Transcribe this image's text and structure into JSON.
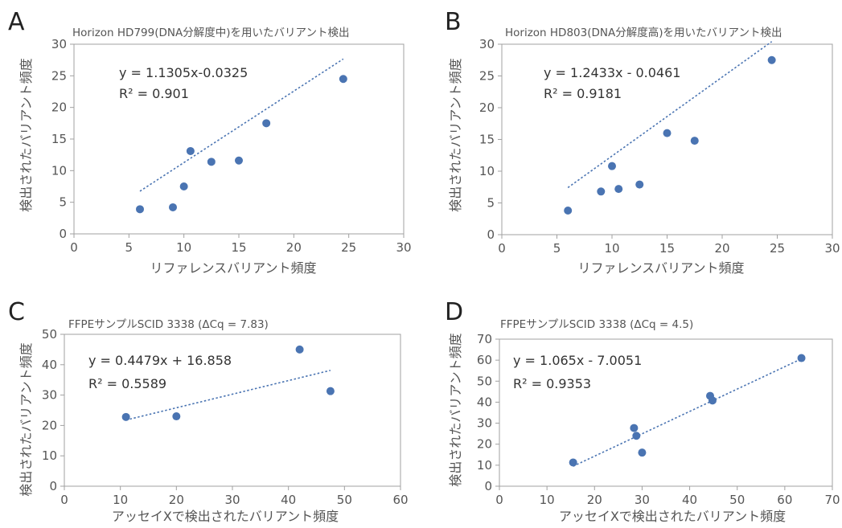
{
  "chart_data": [
    {
      "type": "scatter",
      "panel_letter": "A",
      "title": "Horizon HD799(DNA分解度中)を用いたバリアント検出",
      "xlabel": "リファレンスバリアント頻度",
      "ylabel": "検出されたバリアント頻度",
      "xlim": [
        0,
        30
      ],
      "ylim": [
        0,
        30
      ],
      "xticks": [
        "0",
        "5",
        "10",
        "15",
        "20",
        "25",
        "30"
      ],
      "yticks": [
        "0",
        "5",
        "10",
        "15",
        "20",
        "25",
        "30"
      ],
      "grid": false,
      "x": [
        6.0,
        9.0,
        10.0,
        10.6,
        12.5,
        15.0,
        17.5,
        24.5
      ],
      "y": [
        3.9,
        4.2,
        7.5,
        13.1,
        11.4,
        11.6,
        17.5,
        24.5
      ],
      "trendline": {
        "slope": 1.1305,
        "intercept": -0.0325,
        "x_range": [
          6.0,
          24.5
        ]
      },
      "equation": "y = 1.1305x-0.0325",
      "r2": "R² = 0.901",
      "color": "#4a74b2"
    },
    {
      "type": "scatter",
      "panel_letter": "B",
      "title": "Horizon HD803(DNA分解度高)を用いたバリアント検出",
      "xlabel": "リファレンスバリアント頻度",
      "ylabel": "検出されたバリアント頻度",
      "xlim": [
        0,
        30
      ],
      "ylim": [
        0,
        30
      ],
      "xticks": [
        "0",
        "5",
        "10",
        "15",
        "20",
        "25",
        "30"
      ],
      "yticks": [
        "0",
        "5",
        "10",
        "15",
        "20",
        "25",
        "30"
      ],
      "grid": false,
      "x": [
        6.0,
        9.0,
        10.0,
        10.6,
        12.5,
        15.0,
        17.5,
        24.5
      ],
      "y": [
        3.8,
        6.8,
        10.8,
        7.2,
        7.9,
        16.0,
        14.8,
        27.5
      ],
      "trendline": {
        "slope": 1.2433,
        "intercept": -0.0461,
        "x_range": [
          6.0,
          24.5
        ]
      },
      "equation": "y = 1.2433x - 0.0461",
      "r2": "R² = 0.9181",
      "color": "#4a74b2"
    },
    {
      "type": "scatter",
      "panel_letter": "C",
      "title": "FFPEサンプルSCID 3338 (ΔCq = 7.83)",
      "xlabel": "アッセイXで検出されたバリアント頻度",
      "ylabel": "検出されたバリアント頻度",
      "xlim": [
        0,
        60
      ],
      "ylim": [
        0,
        50
      ],
      "xticks": [
        "0",
        "10",
        "20",
        "30",
        "40",
        "50",
        "60"
      ],
      "yticks": [
        "0",
        "10",
        "20",
        "30",
        "40",
        "50"
      ],
      "grid": false,
      "x": [
        11.0,
        20.0,
        42.0,
        47.5
      ],
      "y": [
        22.8,
        23.0,
        45.0,
        31.3
      ],
      "trendline": {
        "slope": 0.4479,
        "intercept": 16.858,
        "x_range": [
          11.0,
          47.5
        ]
      },
      "equation": "y = 0.4479x  + 16.858",
      "r2": "R² = 0.5589",
      "color": "#4a74b2"
    },
    {
      "type": "scatter",
      "panel_letter": "D",
      "title": "FFPEサンプルSCID 3338 (ΔCq = 4.5)",
      "xlabel": "アッセイXで検出されたバリアント頻度",
      "ylabel": "検出されたバリアント頻度",
      "xlim": [
        0,
        70
      ],
      "ylim": [
        0,
        70
      ],
      "xticks": [
        "0",
        "10",
        "20",
        "30",
        "40",
        "50",
        "60",
        "70"
      ],
      "yticks": [
        "0",
        "10",
        "20",
        "30",
        "40",
        "50",
        "60",
        "70"
      ],
      "grid": false,
      "x": [
        15.5,
        28.3,
        28.8,
        30.0,
        44.3,
        44.8,
        63.5
      ],
      "y": [
        11.3,
        27.7,
        24.0,
        16.0,
        43.0,
        40.8,
        61.0
      ],
      "trendline": {
        "slope": 1.065,
        "intercept": -7.0051,
        "x_range": [
          15.5,
          63.5
        ]
      },
      "equation": "y = 1.065x - 7.0051",
      "r2": "R² = 0.9353",
      "color": "#4a74b2"
    }
  ]
}
